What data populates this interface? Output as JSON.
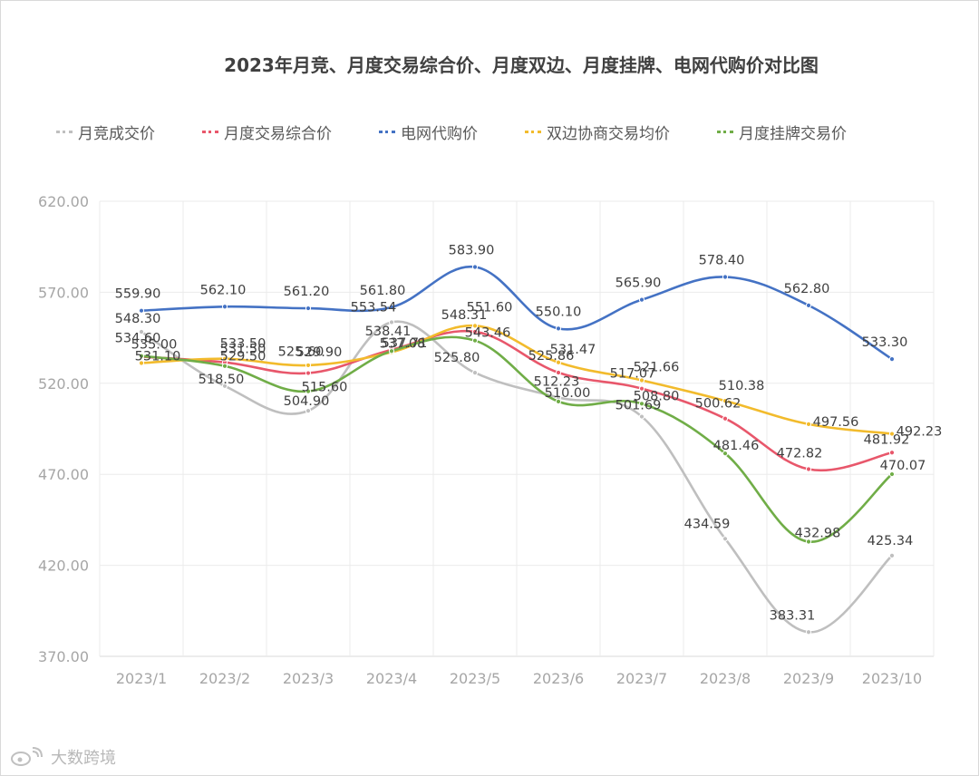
{
  "chart_data": {
    "type": "line",
    "title": "2023年月竞、月度交易综合价、月度双边、月度挂牌、电网代购价对比图",
    "categories": [
      "2023/1",
      "2023/2",
      "2023/3",
      "2023/4",
      "2023/5",
      "2023/6",
      "2023/7",
      "2023/8",
      "2023/9",
      "2023/10"
    ],
    "ylim": [
      370,
      620
    ],
    "yticks": [
      "620.00",
      "570.00",
      "520.00",
      "470.00",
      "420.00",
      "370.00"
    ],
    "ytick_values": [
      620,
      570,
      520,
      470,
      420,
      370
    ],
    "grid": true,
    "legend_position": "top",
    "series": [
      {
        "name": "月竞成交价",
        "color": "#bfbfbf",
        "values": [
          548.3,
          518.5,
          504.9,
          553.54,
          525.8,
          512.23,
          501.69,
          434.59,
          383.31,
          425.34
        ],
        "labels": [
          "548.30",
          "518.50",
          "504.90",
          "553.54",
          "525.80",
          "512.23",
          "501.69",
          "434.59",
          "383.31",
          "425.34"
        ]
      },
      {
        "name": "月度交易综合价",
        "color": "#e8576b",
        "values": [
          534.6,
          531.5,
          525.6,
          538.41,
          548.31,
          525.86,
          517.07,
          500.62,
          472.82,
          481.92
        ],
        "labels": [
          "534.60",
          "531.50",
          "525.60",
          "538.41",
          "548.31",
          "525.86",
          "517.07",
          "500.62",
          "472.82",
          "481.92"
        ]
      },
      {
        "name": "电网代购价",
        "color": "#4472c4",
        "values": [
          559.9,
          562.1,
          561.2,
          561.8,
          583.9,
          550.1,
          565.9,
          578.4,
          562.8,
          533.3
        ],
        "labels": [
          "559.90",
          "562.10",
          "561.20",
          "561.80",
          "583.90",
          "550.10",
          "565.90",
          "578.40",
          "562.80",
          "533.30"
        ]
      },
      {
        "name": "双边协商交易均价",
        "color": "#f2bb2c",
        "values": [
          531.1,
          533.5,
          529.9,
          537.08,
          551.6,
          531.47,
          521.66,
          510.38,
          497.56,
          492.23
        ],
        "labels": [
          "531.10",
          "533.50",
          "529.90",
          "537.08",
          "551.60",
          "531.47",
          "521.66",
          "510.38",
          "497.56",
          "492.23"
        ]
      },
      {
        "name": "月度挂牌交易价",
        "color": "#70ad47",
        "values": [
          535.0,
          529.5,
          515.6,
          537.71,
          543.46,
          510.0,
          508.8,
          481.46,
          432.98,
          470.07
        ],
        "labels": [
          "535.00",
          "529.50",
          "515.60",
          "537.71",
          "543.46",
          "510.00",
          "508.80",
          "481.46",
          "432.98",
          "470.07"
        ]
      }
    ]
  },
  "watermark": "大数跨境"
}
